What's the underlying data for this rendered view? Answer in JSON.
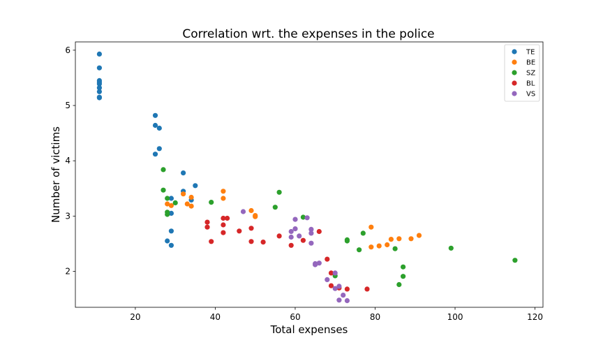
{
  "chart_data": {
    "type": "scatter",
    "title": "Correlation wrt. the expenses in the police",
    "xlabel": "Total expenses",
    "ylabel": "Number of victims",
    "xlim": [
      5,
      122
    ],
    "ylim": [
      1.35,
      6.15
    ],
    "xticks": [
      20,
      40,
      60,
      80,
      100,
      120
    ],
    "yticks": [
      2,
      3,
      4,
      5,
      6
    ],
    "grid": false,
    "legend_position": "top-right",
    "series": [
      {
        "name": "TE",
        "color": "#1f77b4",
        "points": [
          [
            11,
            5.93
          ],
          [
            11,
            5.68
          ],
          [
            11,
            5.45
          ],
          [
            11,
            5.42
          ],
          [
            11,
            5.39
          ],
          [
            11,
            5.32
          ],
          [
            11,
            5.25
          ],
          [
            11,
            5.15
          ],
          [
            11,
            5.14
          ],
          [
            25,
            4.82
          ],
          [
            25,
            4.64
          ],
          [
            26,
            4.59
          ],
          [
            26,
            4.22
          ],
          [
            25,
            4.12
          ],
          [
            32,
            3.78
          ],
          [
            35,
            3.55
          ],
          [
            32,
            3.45
          ],
          [
            29,
            3.32
          ],
          [
            34,
            3.29
          ],
          [
            29,
            3.05
          ],
          [
            29,
            2.73
          ],
          [
            28,
            2.55
          ],
          [
            29,
            2.47
          ]
        ]
      },
      {
        "name": "BE",
        "color": "#ff7f0e",
        "points": [
          [
            28,
            3.22
          ],
          [
            29,
            3.19
          ],
          [
            33,
            3.22
          ],
          [
            34,
            3.18
          ],
          [
            34,
            3.34
          ],
          [
            32,
            3.4
          ],
          [
            42,
            3.45
          ],
          [
            42,
            3.32
          ],
          [
            49,
            3.1
          ],
          [
            50,
            3.01
          ],
          [
            50,
            2.99
          ],
          [
            79,
            2.8
          ],
          [
            79,
            2.44
          ],
          [
            81,
            2.46
          ],
          [
            83,
            2.48
          ],
          [
            84,
            2.58
          ],
          [
            86,
            2.59
          ],
          [
            89,
            2.59
          ],
          [
            91,
            2.65
          ]
        ]
      },
      {
        "name": "SZ",
        "color": "#2ca02c",
        "points": [
          [
            27,
            3.84
          ],
          [
            27,
            3.47
          ],
          [
            28,
            3.32
          ],
          [
            30,
            3.24
          ],
          [
            28,
            3.07
          ],
          [
            28,
            3.03
          ],
          [
            39,
            3.25
          ],
          [
            55,
            3.16
          ],
          [
            56,
            3.43
          ],
          [
            62,
            2.98
          ],
          [
            73,
            2.57
          ],
          [
            73,
            2.55
          ],
          [
            76,
            2.39
          ],
          [
            77,
            2.69
          ],
          [
            85,
            2.41
          ],
          [
            87,
            2.08
          ],
          [
            87,
            1.91
          ],
          [
            86,
            1.76
          ],
          [
            70,
            1.92
          ],
          [
            99,
            2.42
          ],
          [
            115,
            2.2
          ]
        ]
      },
      {
        "name": "BL",
        "color": "#d62728",
        "points": [
          [
            38,
            2.89
          ],
          [
            38,
            2.8
          ],
          [
            39,
            2.54
          ],
          [
            42,
            2.96
          ],
          [
            43,
            2.96
          ],
          [
            42,
            2.84
          ],
          [
            42,
            2.7
          ],
          [
            46,
            2.73
          ],
          [
            49,
            2.78
          ],
          [
            49,
            2.54
          ],
          [
            52,
            2.53
          ],
          [
            56,
            2.64
          ],
          [
            59,
            2.47
          ],
          [
            62,
            2.56
          ],
          [
            66,
            2.72
          ],
          [
            68,
            2.22
          ],
          [
            69,
            1.97
          ],
          [
            69,
            1.74
          ],
          [
            71,
            1.7
          ],
          [
            73,
            1.68
          ],
          [
            78,
            1.68
          ]
        ]
      },
      {
        "name": "VS",
        "color": "#9467bd",
        "points": [
          [
            47,
            3.08
          ],
          [
            60,
            2.94
          ],
          [
            63,
            2.97
          ],
          [
            59,
            2.72
          ],
          [
            60,
            2.77
          ],
          [
            59,
            2.62
          ],
          [
            61,
            2.64
          ],
          [
            64,
            2.76
          ],
          [
            64,
            2.69
          ],
          [
            64,
            2.51
          ],
          [
            65,
            2.14
          ],
          [
            65,
            2.12
          ],
          [
            66,
            2.15
          ],
          [
            68,
            1.85
          ],
          [
            70,
            1.97
          ],
          [
            70,
            1.69
          ],
          [
            71,
            1.73
          ],
          [
            72,
            1.57
          ],
          [
            71,
            1.48
          ],
          [
            73,
            1.47
          ]
        ]
      }
    ]
  }
}
